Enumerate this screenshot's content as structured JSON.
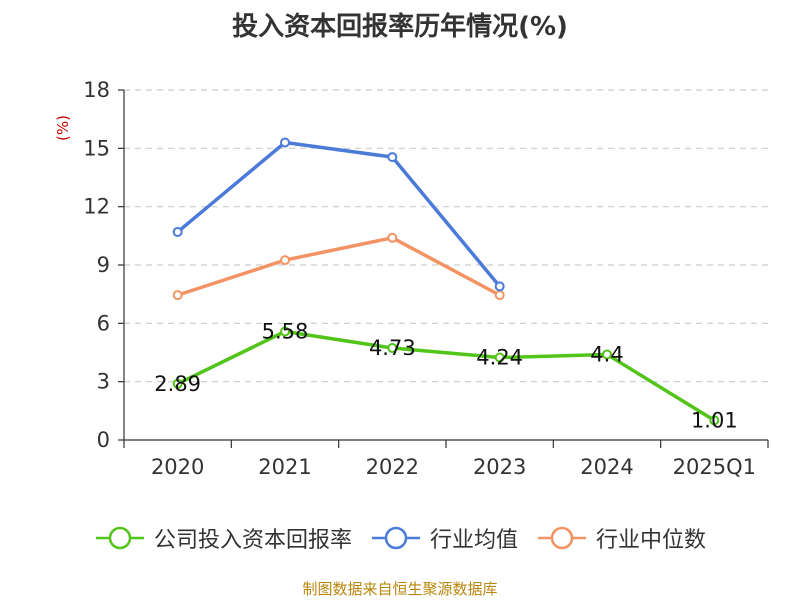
{
  "chart_data": {
    "type": "line",
    "title": "投入资本回报率历年情况(%)",
    "ylabel": "(%)",
    "xlabel": "",
    "ylim": [
      0,
      18
    ],
    "yticks": [
      0,
      3,
      6,
      9,
      12,
      15,
      18
    ],
    "categories": [
      "2020",
      "2021",
      "2022",
      "2023",
      "2024",
      "2025Q1"
    ],
    "grid": true,
    "legend_position": "bottom",
    "series": [
      {
        "name": "公司投入资本回报率",
        "color": "#52c41a",
        "labels": true,
        "values": [
          2.89,
          5.58,
          4.73,
          4.24,
          4.4,
          1.01
        ],
        "value_labels": [
          "2.89",
          "5.58",
          "4.73",
          "4.24",
          "4.4",
          "1.01"
        ]
      },
      {
        "name": "行业均值",
        "color": "#4a7bd8",
        "labels": false,
        "values": [
          10.7,
          15.3,
          14.55,
          7.9,
          null,
          null
        ]
      },
      {
        "name": "行业中位数",
        "color": "#f39262",
        "labels": false,
        "values": [
          7.45,
          9.25,
          10.4,
          7.45,
          null,
          null
        ]
      }
    ]
  },
  "source": "制图数据来自恒生聚源数据库"
}
